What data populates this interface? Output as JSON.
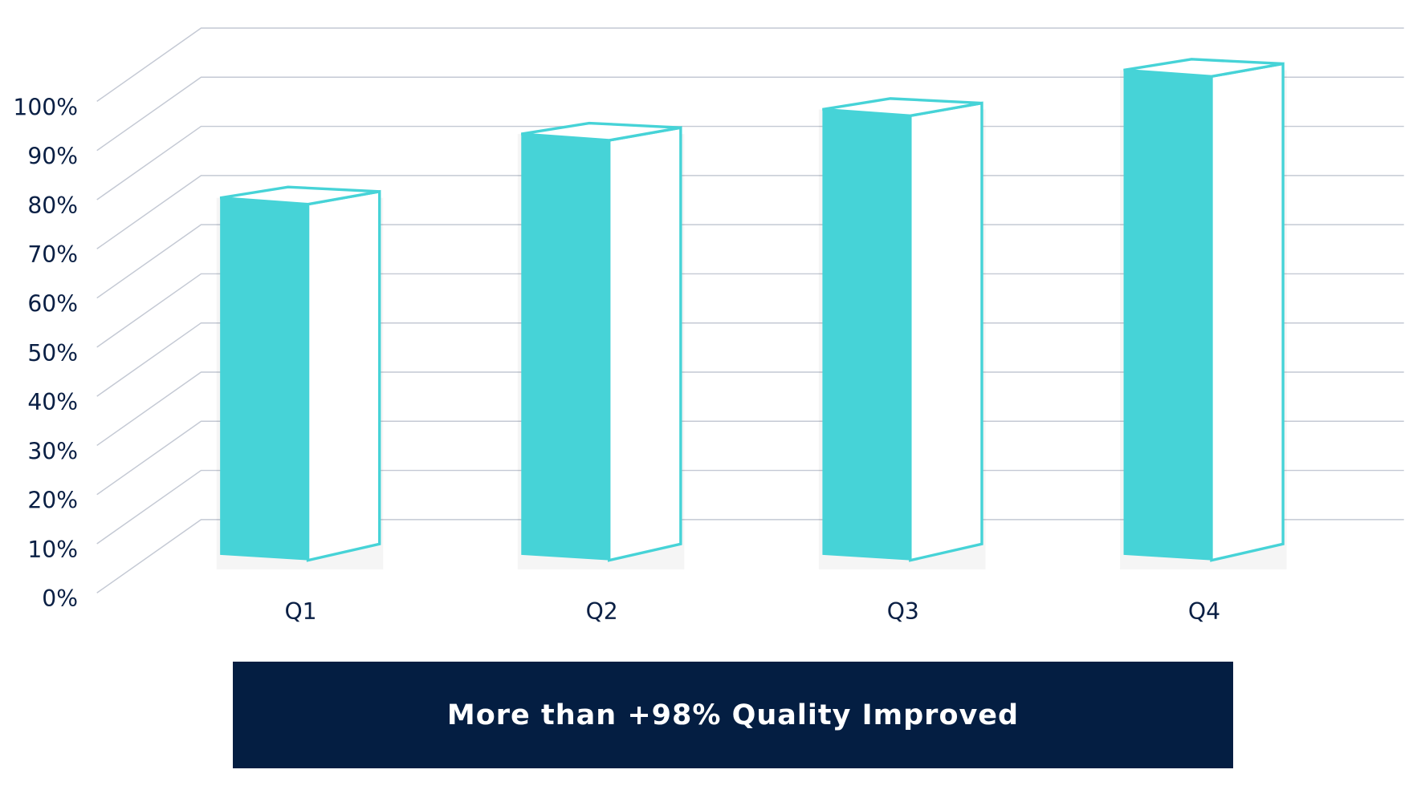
{
  "chart_data": {
    "type": "bar",
    "style": "3d",
    "categories": [
      "Q1",
      "Q2",
      "Q3",
      "Q4"
    ],
    "values": [
      73,
      86,
      91,
      99
    ],
    "y_ticks": [
      "0%",
      "10%",
      "20%",
      "30%",
      "40%",
      "50%",
      "60%",
      "70%",
      "80%",
      "90%",
      "100%"
    ],
    "ylim": [
      0,
      100
    ],
    "grid": true,
    "bar_color": "#46d3d7",
    "label_color": "#0a1f44",
    "grid_color": "#c4c9d4"
  },
  "banner": {
    "text": "More than +98% Quality Improved",
    "color": "#041e42"
  }
}
